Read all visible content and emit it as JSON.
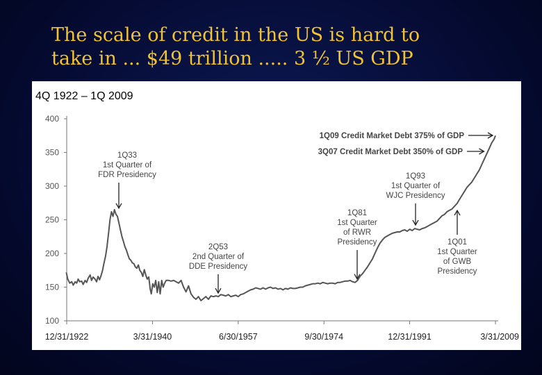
{
  "slide": {
    "title_line1": "The scale of credit in the US is hard to",
    "title_line2": "take in ... $49 trillion ..... 3 ½ US GDP",
    "title_color": "#f1c232",
    "background_color": "#050b33"
  },
  "chart_data": {
    "type": "line",
    "title": "4Q 1922 – 1Q 2009",
    "xlabel": "",
    "ylabel": "",
    "xlim": [
      1922.99,
      2009.25
    ],
    "ylim": [
      100,
      400
    ],
    "yticks": [
      100,
      150,
      200,
      250,
      300,
      350,
      400
    ],
    "xticks": [
      {
        "value": 1922.99,
        "label": "12/31/1922"
      },
      {
        "value": 1940.25,
        "label": "3/31/1940"
      },
      {
        "value": 1957.5,
        "label": "6/30/1957"
      },
      {
        "value": 1974.75,
        "label": "9/30/1974"
      },
      {
        "value": 1991.99,
        "label": "12/31/1991"
      },
      {
        "value": 2009.25,
        "label": "3/31/2009"
      }
    ],
    "grid": false,
    "line_color": "#555555",
    "series": [
      {
        "points": [
          [
            1922.9,
            172
          ],
          [
            1923.2,
            162
          ],
          [
            1923.6,
            156
          ],
          [
            1924.0,
            158
          ],
          [
            1924.3,
            153
          ],
          [
            1924.7,
            158
          ],
          [
            1925.0,
            156
          ],
          [
            1925.3,
            162
          ],
          [
            1925.6,
            158
          ],
          [
            1926.0,
            159
          ],
          [
            1926.3,
            154
          ],
          [
            1926.7,
            160
          ],
          [
            1927.0,
            157
          ],
          [
            1927.3,
            163
          ],
          [
            1927.7,
            168
          ],
          [
            1928.0,
            160
          ],
          [
            1928.3,
            165
          ],
          [
            1928.7,
            162
          ],
          [
            1929.0,
            158
          ],
          [
            1929.3,
            166
          ],
          [
            1929.6,
            161
          ],
          [
            1929.9,
            167
          ],
          [
            1930.2,
            175
          ],
          [
            1930.5,
            186
          ],
          [
            1930.8,
            196
          ],
          [
            1931.1,
            210
          ],
          [
            1931.4,
            230
          ],
          [
            1931.7,
            250
          ],
          [
            1932.0,
            262
          ],
          [
            1932.3,
            255
          ],
          [
            1932.6,
            265
          ],
          [
            1932.9,
            258
          ],
          [
            1933.2,
            255
          ],
          [
            1933.5,
            245
          ],
          [
            1933.8,
            235
          ],
          [
            1934.1,
            225
          ],
          [
            1934.4,
            218
          ],
          [
            1934.7,
            210
          ],
          [
            1935.0,
            205
          ],
          [
            1935.3,
            198
          ],
          [
            1935.6,
            192
          ],
          [
            1935.9,
            190
          ],
          [
            1936.2,
            186
          ],
          [
            1936.5,
            185
          ],
          [
            1936.8,
            180
          ],
          [
            1937.1,
            178
          ],
          [
            1937.4,
            183
          ],
          [
            1937.7,
            175
          ],
          [
            1938.0,
            172
          ],
          [
            1938.3,
            166
          ],
          [
            1938.6,
            176
          ],
          [
            1938.9,
            168
          ],
          [
            1939.2,
            162
          ],
          [
            1939.5,
            165
          ],
          [
            1939.8,
            147
          ],
          [
            1940.0,
            140
          ],
          [
            1940.3,
            155
          ],
          [
            1940.6,
            150
          ],
          [
            1940.9,
            160
          ],
          [
            1941.2,
            142
          ],
          [
            1941.5,
            158
          ],
          [
            1941.8,
            140
          ],
          [
            1942.1,
            160
          ],
          [
            1942.4,
            150
          ],
          [
            1942.7,
            156
          ],
          [
            1943.0,
            160
          ],
          [
            1943.5,
            160
          ],
          [
            1944.0,
            159
          ],
          [
            1944.5,
            160
          ],
          [
            1945.0,
            158
          ],
          [
            1945.5,
            156
          ],
          [
            1946.0,
            160
          ],
          [
            1946.5,
            150
          ],
          [
            1947.0,
            143
          ],
          [
            1947.5,
            152
          ],
          [
            1948.0,
            140
          ],
          [
            1948.5,
            135
          ],
          [
            1949.0,
            132
          ],
          [
            1949.5,
            136
          ],
          [
            1950.0,
            130
          ],
          [
            1950.5,
            133
          ],
          [
            1951.0,
            136
          ],
          [
            1951.5,
            132
          ],
          [
            1952.0,
            137
          ],
          [
            1952.5,
            136
          ],
          [
            1953.0,
            137
          ],
          [
            1953.5,
            136
          ],
          [
            1954.0,
            139
          ],
          [
            1954.5,
            138
          ],
          [
            1955.0,
            137
          ],
          [
            1955.5,
            139
          ],
          [
            1956.0,
            136
          ],
          [
            1956.5,
            137
          ],
          [
            1957.0,
            138
          ],
          [
            1957.5,
            136
          ],
          [
            1958.0,
            139
          ],
          [
            1958.5,
            140
          ],
          [
            1959.0,
            142
          ],
          [
            1959.5,
            144
          ],
          [
            1960.0,
            146
          ],
          [
            1960.5,
            147
          ],
          [
            1961.0,
            149
          ],
          [
            1961.5,
            148
          ],
          [
            1962.0,
            147
          ],
          [
            1962.5,
            149
          ],
          [
            1963.0,
            147
          ],
          [
            1963.5,
            149
          ],
          [
            1964.0,
            150
          ],
          [
            1964.5,
            148
          ],
          [
            1965.0,
            149
          ],
          [
            1965.5,
            147
          ],
          [
            1966.0,
            148
          ],
          [
            1966.5,
            146
          ],
          [
            1967.0,
            148
          ],
          [
            1967.5,
            147
          ],
          [
            1968.0,
            149
          ],
          [
            1968.5,
            148
          ],
          [
            1969.0,
            148
          ],
          [
            1969.5,
            149
          ],
          [
            1970.0,
            150
          ],
          [
            1970.5,
            150
          ],
          [
            1971.0,
            152
          ],
          [
            1971.5,
            153
          ],
          [
            1972.0,
            154
          ],
          [
            1972.5,
            155
          ],
          [
            1973.0,
            155
          ],
          [
            1973.5,
            156
          ],
          [
            1974.0,
            155
          ],
          [
            1974.5,
            157
          ],
          [
            1975.0,
            156
          ],
          [
            1975.5,
            155
          ],
          [
            1976.0,
            156
          ],
          [
            1976.5,
            156
          ],
          [
            1977.0,
            155
          ],
          [
            1977.5,
            157
          ],
          [
            1978.0,
            157
          ],
          [
            1978.5,
            158
          ],
          [
            1979.0,
            159
          ],
          [
            1979.5,
            159
          ],
          [
            1980.0,
            160
          ],
          [
            1980.5,
            158
          ],
          [
            1981.0,
            157
          ],
          [
            1981.5,
            160
          ],
          [
            1982.0,
            166
          ],
          [
            1982.5,
            170
          ],
          [
            1983.0,
            175
          ],
          [
            1983.5,
            180
          ],
          [
            1984.0,
            186
          ],
          [
            1984.5,
            192
          ],
          [
            1985.0,
            200
          ],
          [
            1985.5,
            208
          ],
          [
            1986.0,
            215
          ],
          [
            1986.5,
            220
          ],
          [
            1987.0,
            224
          ],
          [
            1987.5,
            226
          ],
          [
            1988.0,
            228
          ],
          [
            1988.5,
            230
          ],
          [
            1989.0,
            231
          ],
          [
            1989.5,
            232
          ],
          [
            1990.0,
            232
          ],
          [
            1990.5,
            234
          ],
          [
            1991.0,
            235
          ],
          [
            1991.5,
            233
          ],
          [
            1992.0,
            236
          ],
          [
            1992.5,
            234
          ],
          [
            1993.0,
            237
          ],
          [
            1993.5,
            236
          ],
          [
            1994.0,
            235
          ],
          [
            1994.5,
            237
          ],
          [
            1995.0,
            238
          ],
          [
            1995.5,
            240
          ],
          [
            1996.0,
            242
          ],
          [
            1996.5,
            244
          ],
          [
            1997.0,
            246
          ],
          [
            1997.5,
            248
          ],
          [
            1998.0,
            252
          ],
          [
            1998.5,
            256
          ],
          [
            1999.0,
            258
          ],
          [
            1999.5,
            262
          ],
          [
            2000.0,
            264
          ],
          [
            2000.5,
            266
          ],
          [
            2001.0,
            270
          ],
          [
            2001.5,
            274
          ],
          [
            2002.0,
            280
          ],
          [
            2002.5,
            286
          ],
          [
            2003.0,
            292
          ],
          [
            2003.5,
            298
          ],
          [
            2004.0,
            302
          ],
          [
            2004.5,
            306
          ],
          [
            2005.0,
            312
          ],
          [
            2005.5,
            318
          ],
          [
            2006.0,
            324
          ],
          [
            2006.5,
            332
          ],
          [
            2007.0,
            340
          ],
          [
            2007.5,
            348
          ],
          [
            2008.0,
            356
          ],
          [
            2008.5,
            364
          ],
          [
            2009.0,
            370
          ],
          [
            2009.25,
            375
          ]
        ]
      }
    ],
    "annotations": [
      {
        "lines": [
          "1Q33",
          "1st Quarter of",
          "FDR Presidency"
        ],
        "target": [
          1932.3,
          262
        ]
      },
      {
        "lines": [
          "2Q53",
          "2nd Quarter of",
          "DDE Presidency"
        ],
        "target": [
          1953.5,
          136
        ]
      },
      {
        "lines": [
          "1Q81",
          "1st Quarter",
          "of RWR",
          "Presidency"
        ],
        "target": [
          1981.0,
          157
        ]
      },
      {
        "lines": [
          "1Q93",
          "1st Quarter of",
          "WJC Presidency"
        ],
        "target": [
          1993.0,
          237
        ]
      },
      {
        "lines": [
          "1Q01",
          "1st Quarter",
          "of GWB",
          "Presidency"
        ],
        "target": [
          2001.0,
          270
        ]
      },
      {
        "lines": [
          "1Q09 Credit Market Debt 375% of GDP"
        ],
        "target": [
          2009.25,
          375
        ]
      },
      {
        "lines": [
          "3Q07 Credit Market Debt 350% of GDP"
        ],
        "target": [
          2007.5,
          350
        ]
      }
    ]
  }
}
